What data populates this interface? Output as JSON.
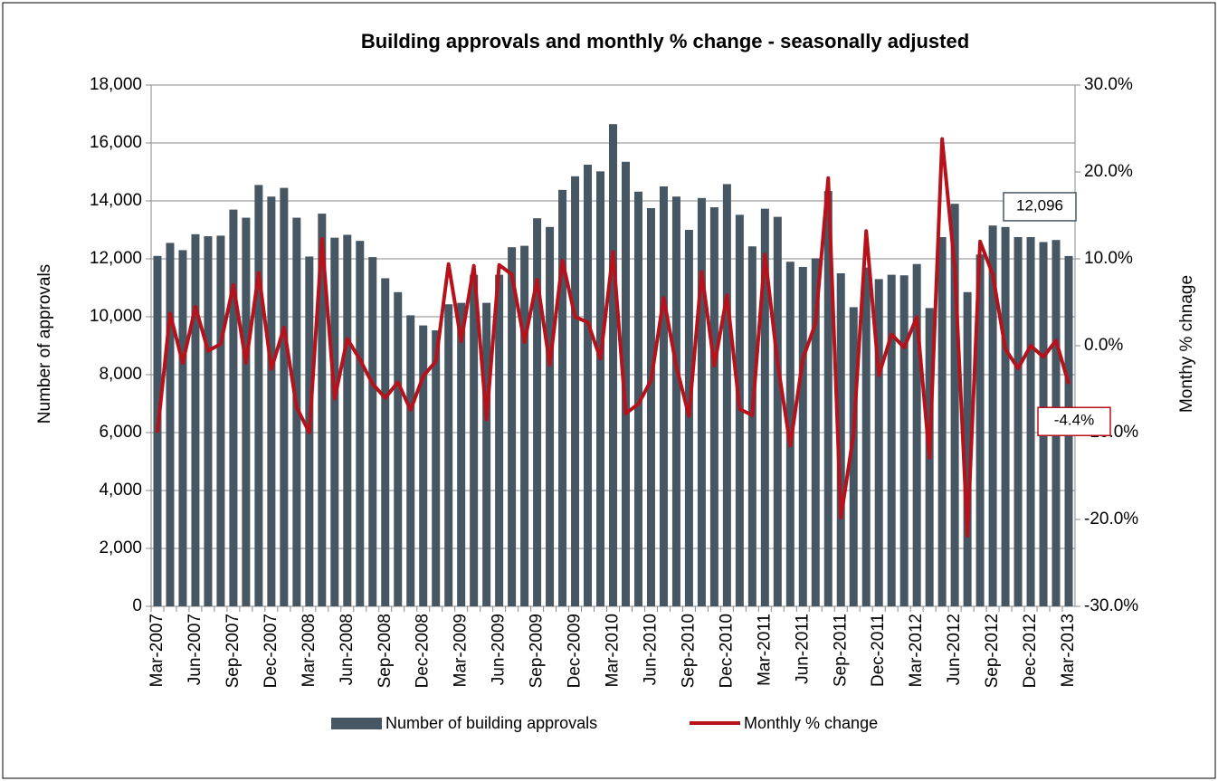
{
  "chart_data": {
    "type": "bar_line",
    "title": "Building approvals and monthly % change - seasonally adjusted",
    "y_label": "Number of approvals",
    "y2_label": "Monthy % chnage",
    "categories": [
      "Mar-2007",
      null,
      null,
      "Jun-2007",
      null,
      null,
      "Sep-2007",
      null,
      null,
      "Dec-2007",
      null,
      null,
      "Mar-2008",
      null,
      null,
      "Jun-2008",
      null,
      null,
      "Sep-2008",
      null,
      null,
      "Dec-2008",
      null,
      null,
      "Mar-2009",
      null,
      null,
      "Jun-2009",
      null,
      null,
      "Sep-2009",
      null,
      null,
      "Dec-2009",
      null,
      null,
      "Mar-2010",
      null,
      null,
      "Jun-2010",
      null,
      null,
      "Sep-2010",
      null,
      null,
      "Dec-2010",
      null,
      null,
      "Mar-2011",
      null,
      null,
      "Jun-2011",
      null,
      null,
      "Sep-2011",
      null,
      null,
      "Dec-2011",
      null,
      null,
      "Mar-2012",
      null,
      null,
      "Jun-2012",
      null,
      null,
      "Sep-2012",
      null,
      null,
      "Dec-2012",
      null,
      null,
      "Mar-2013"
    ],
    "series": [
      {
        "name": "Number of building approvals",
        "kind": "bar",
        "color": "#475663",
        "values": [
          12100,
          12550,
          12300,
          12850,
          12780,
          12800,
          13700,
          13420,
          14550,
          14150,
          14450,
          13420,
          12080,
          13560,
          12730,
          12830,
          12620,
          12060,
          11330,
          10850,
          10050,
          9700,
          9530,
          10430,
          10480,
          11450,
          10480,
          11450,
          12400,
          12450,
          13400,
          13100,
          14380,
          14850,
          15250,
          15020,
          16650,
          15350,
          14320,
          13750,
          14500,
          14150,
          13000,
          14100,
          13780,
          14580,
          13520,
          12430,
          13730,
          13450,
          11900,
          11720,
          12020,
          14340,
          11500,
          10330,
          11700,
          11300,
          11450,
          11430,
          11820,
          10300,
          12750,
          13900,
          10850,
          12150,
          13150,
          13100,
          12750,
          12750,
          12580,
          12650,
          12096
        ],
        "value_labels": [
          null,
          null,
          null,
          null,
          null,
          null,
          null,
          null,
          null,
          null,
          null,
          null,
          null,
          null,
          null,
          null,
          null,
          null,
          null,
          null,
          null,
          null,
          null,
          null,
          null,
          null,
          null,
          null,
          null,
          null,
          null,
          null,
          null,
          null,
          null,
          null,
          null,
          null,
          null,
          null,
          null,
          null,
          null,
          null,
          null,
          null,
          null,
          null,
          null,
          null,
          null,
          null,
          null,
          null,
          null,
          null,
          null,
          null,
          null,
          null,
          null,
          null,
          null,
          null,
          null,
          null,
          null,
          null,
          null,
          null,
          null,
          null,
          "12,096"
        ]
      },
      {
        "name": "Monthly % change",
        "kind": "line",
        "axis": "y2",
        "color": "#b5121b",
        "values": [
          -10,
          3.7,
          -2,
          4.5,
          -0.6,
          0.2,
          7,
          -2,
          8.4,
          -2.7,
          2.1,
          -7.1,
          -10,
          12.3,
          -6.1,
          0.8,
          -1.6,
          -4.4,
          -6,
          -4.2,
          -7.4,
          -3.5,
          -1.8,
          9.4,
          0.5,
          9.2,
          -8.5,
          9.3,
          8.2,
          0.4,
          7.6,
          -2.2,
          9.8,
          3.3,
          2.7,
          -1.5,
          10.8,
          -7.8,
          -6.7,
          -4,
          5.5,
          -2.4,
          -8.1,
          8.5,
          -2.3,
          5.8,
          -7.3,
          -8,
          10.5,
          -2,
          -11.5,
          -1.5,
          2.6,
          19.3,
          -19.8,
          -10.2,
          13.2,
          -3.4,
          1.3,
          -0.2,
          3.3,
          -12.9,
          23.8,
          9,
          -21.9,
          12,
          8.2,
          -0.4,
          -2.6,
          0,
          -1.3,
          0.6,
          -4.4
        ],
        "value_labels": [
          null,
          null,
          null,
          null,
          null,
          null,
          null,
          null,
          null,
          null,
          null,
          null,
          null,
          null,
          null,
          null,
          null,
          null,
          null,
          null,
          null,
          null,
          null,
          null,
          null,
          null,
          null,
          null,
          null,
          null,
          null,
          null,
          null,
          null,
          null,
          null,
          null,
          null,
          null,
          null,
          null,
          null,
          null,
          null,
          null,
          null,
          null,
          null,
          null,
          null,
          null,
          null,
          null,
          null,
          null,
          null,
          null,
          null,
          null,
          null,
          null,
          null,
          null,
          null,
          null,
          null,
          null,
          null,
          null,
          null,
          null,
          null,
          "-4.4%"
        ]
      }
    ],
    "ylim": [
      0,
      18000
    ],
    "yticks": [
      0,
      {
        "value": 2000,
        "label": "2,000"
      },
      {
        "value": 4000,
        "label": "4,000"
      },
      {
        "value": 6000,
        "label": "6,000"
      },
      {
        "value": 8000,
        "label": "8,000"
      },
      {
        "value": 10000,
        "label": "10,000"
      },
      {
        "value": 12000,
        "label": "12,000"
      },
      {
        "value": 14000,
        "label": "14,000"
      },
      {
        "value": 16000,
        "label": "16,000"
      },
      {
        "value": 18000,
        "label": "18,000"
      }
    ],
    "y2lim": [
      -30,
      30
    ],
    "y2ticks": [
      {
        "value": -30,
        "label": "-30.0%"
      },
      {
        "value": -20,
        "label": "-20.0%"
      },
      {
        "value": -10,
        "label": "-10.0%"
      },
      {
        "value": 0,
        "label": "0.0%"
      },
      {
        "value": 10,
        "label": "10.0%"
      },
      {
        "value": 20,
        "label": "20.0%"
      },
      {
        "value": 30,
        "label": "30.0%"
      }
    ],
    "grid": true,
    "legend": "bottom"
  }
}
